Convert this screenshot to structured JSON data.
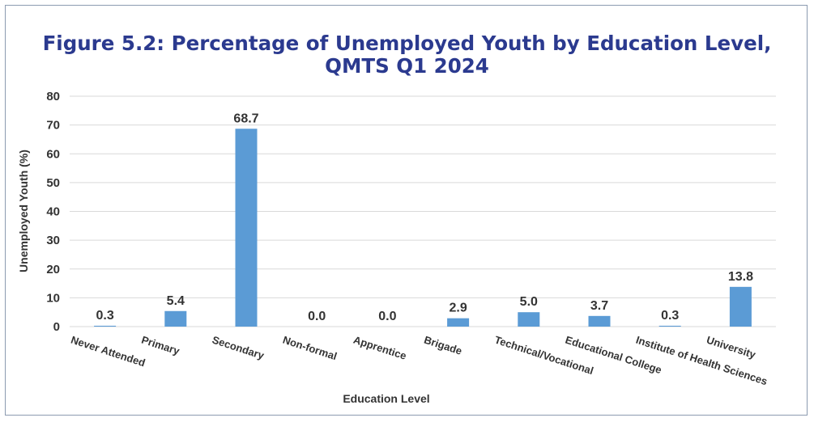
{
  "chart_data": {
    "type": "bar",
    "title_line1": "Figure 5.2: Percentage of Unemployed Youth by Education Level,",
    "title_line2": "QMTS Q1 2024",
    "xlabel": "Education Level",
    "ylabel": "Unemployed Youth (%)",
    "ylim": [
      0,
      80
    ],
    "yticks": [
      "0",
      "10",
      "20",
      "30",
      "40",
      "50",
      "60",
      "70",
      "80"
    ],
    "categories": [
      "Never Attended",
      "Primary",
      "Secondary",
      "Non-formal",
      "Apprentice",
      "Brigade",
      "Technical/Vocational",
      "Educational College",
      "Institute of Health Sciences",
      "University"
    ],
    "values": [
      0.3,
      5.4,
      68.7,
      0.0,
      0.0,
      2.9,
      5.0,
      3.7,
      0.3,
      13.8
    ],
    "value_labels": [
      "0.3",
      "5.4",
      "68.7",
      "0.0",
      "0.0",
      "2.9",
      "5.0",
      "3.7",
      "0.3",
      "13.8"
    ],
    "bar_color": "#5b9bd5",
    "grid": true,
    "legend": false
  }
}
